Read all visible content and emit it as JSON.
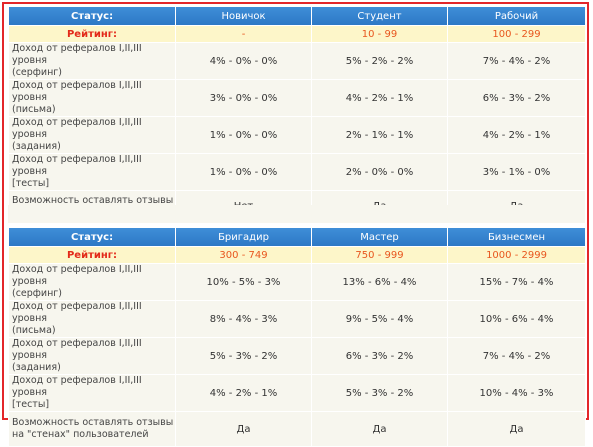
{
  "levels": {
    "top": [
      {
        "name": "Новичок",
        "rating": "-",
        "surfing": "4% - 0% - 0%",
        "letters": "3% - 0% - 0%",
        "tasks": "1% - 0% - 0%",
        "tests": "1% - 0% - 0%",
        "reviews": "Нет"
      },
      {
        "name": "Студент",
        "rating": "10 - 99",
        "surfing": "5% - 2% - 2%",
        "letters": "4% - 2% - 1%",
        "tasks": "2% - 1% - 1%",
        "tests": "2% - 0% - 0%",
        "reviews": "Да"
      },
      {
        "name": "Рабочий",
        "rating": "100 - 299",
        "surfing": "7% - 4% - 2%",
        "letters": "6% - 3% - 2%",
        "tasks": "4% - 2% - 1%",
        "tests": "3% - 1% - 0%",
        "reviews": "Да"
      }
    ],
    "bottom": [
      {
        "name": "Бригадир",
        "rating": "300 - 749",
        "surfing": "10% - 5% - 3%",
        "letters": "8% - 4% - 3%",
        "tasks": "5% - 3% - 2%",
        "tests": "4% - 2% - 1%",
        "reviews": "Да"
      },
      {
        "name": "Мастер",
        "rating": "750 - 999",
        "surfing": "13% - 6% - 4%",
        "letters": "9% - 5% - 4%",
        "tasks": "6% - 3% - 2%",
        "tests": "5% - 3% - 2%",
        "reviews": "Да"
      },
      {
        "name": "Бизнесмен",
        "rating": "1000 - 2999",
        "surfing": "15% - 7% - 4%",
        "letters": "10% - 6% - 4%",
        "tasks": "7% - 4% - 2%",
        "tests": "10% - 4% - 3%",
        "reviews": "Да"
      }
    ]
  },
  "labels": {
    "status": "Статус:",
    "rating": "Рейтинг:",
    "surfing_1": "Доход от рефералов I,II,III уровня",
    "surfing_2": "(серфинг)",
    "letters_1": "Доход от рефералов I,II,III уровня",
    "letters_2": "(письма)",
    "tasks_1": "Доход от рефералов I,II,III уровня",
    "tasks_2": "(задания)",
    "tests_1": "Доход от рефералов I,II,III уровня",
    "tests_2": "[тесты]",
    "reviews_1": "Возможность оставлять отзывы",
    "reviews_2": "на \"стенах\" пользователей"
  },
  "colors": {
    "header_blue": "#2d78c6",
    "rating_bg": "#fdf6c9",
    "rating_text": "#e8571f",
    "row_bg": "#f7f6ee",
    "frame_red": "#e3262a"
  }
}
